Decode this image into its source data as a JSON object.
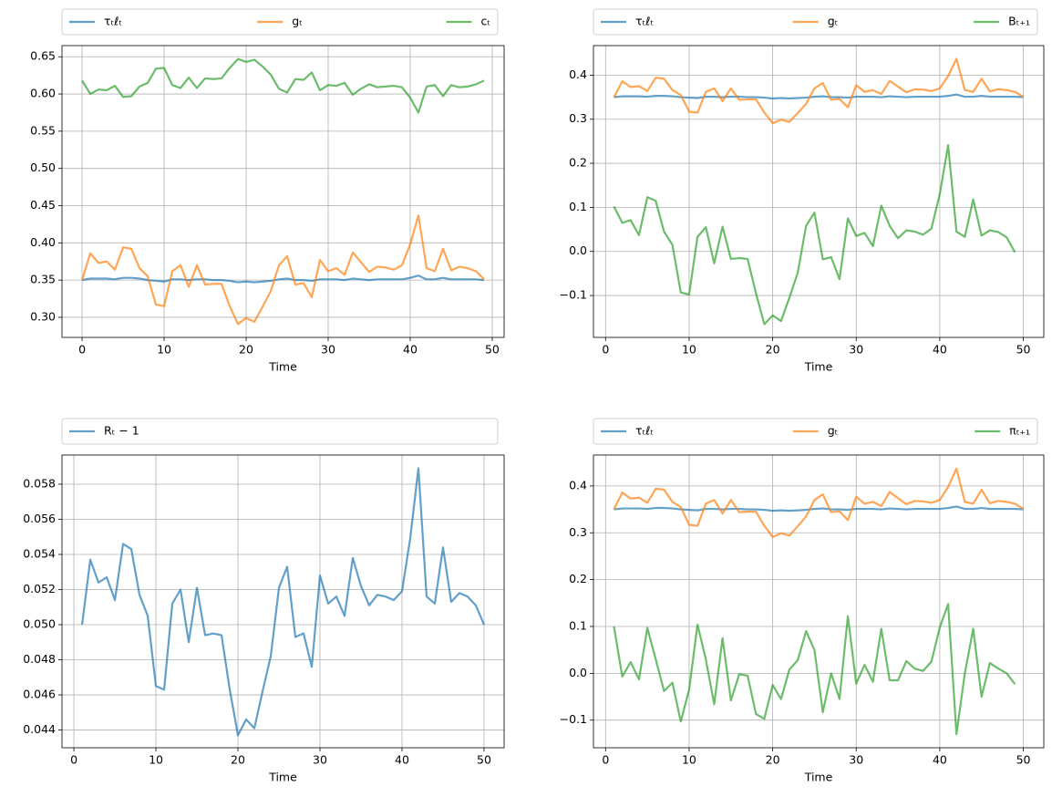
{
  "chart_data": [
    {
      "type": "line",
      "xlabel": "Time",
      "grid": true,
      "legend": "top",
      "x": [
        0,
        1,
        2,
        3,
        4,
        5,
        6,
        7,
        8,
        9,
        10,
        11,
        12,
        13,
        14,
        15,
        16,
        17,
        18,
        19,
        20,
        21,
        22,
        23,
        24,
        25,
        26,
        27,
        28,
        29,
        30,
        31,
        32,
        33,
        34,
        35,
        36,
        37,
        38,
        39,
        40,
        41,
        42,
        43,
        44,
        45,
        46,
        47,
        48,
        49
      ],
      "xlim": [
        -2.45,
        51.45
      ],
      "xticks": [
        0,
        10,
        20,
        30,
        40,
        50
      ],
      "ylim": [
        0.273,
        0.665
      ],
      "yticks": [
        {
          "value": 0.3,
          "label": "0.30"
        },
        0.35,
        {
          "value": 0.4,
          "label": "0.40"
        },
        0.45,
        {
          "value": 0.5,
          "label": "0.50"
        },
        0.55,
        {
          "value": 0.6,
          "label": "0.60"
        },
        0.65
      ],
      "series": [
        {
          "name": "τₜℓₜ",
          "color": "#1f77b4",
          "values": [
            0.35,
            0.352,
            0.352,
            0.352,
            0.351,
            0.353,
            0.353,
            0.352,
            0.35,
            0.349,
            0.348,
            0.351,
            0.351,
            0.35,
            0.351,
            0.351,
            0.35,
            0.35,
            0.349,
            0.347,
            0.348,
            0.347,
            0.348,
            0.349,
            0.351,
            0.352,
            0.35,
            0.35,
            0.349,
            0.351,
            0.351,
            0.351,
            0.35,
            0.352,
            0.351,
            0.35,
            0.351,
            0.351,
            0.351,
            0.351,
            0.353,
            0.356,
            0.351,
            0.351,
            0.353,
            0.351,
            0.351,
            0.351,
            0.351,
            0.35
          ]
        },
        {
          "name": "gₜ",
          "color": "#ff7f0e",
          "values": [
            0.35,
            0.386,
            0.373,
            0.375,
            0.364,
            0.394,
            0.392,
            0.366,
            0.355,
            0.317,
            0.315,
            0.362,
            0.37,
            0.341,
            0.37,
            0.344,
            0.345,
            0.345,
            0.315,
            0.291,
            0.299,
            0.294,
            0.314,
            0.335,
            0.37,
            0.382,
            0.344,
            0.346,
            0.327,
            0.377,
            0.362,
            0.366,
            0.357,
            0.387,
            0.374,
            0.361,
            0.368,
            0.367,
            0.364,
            0.37,
            0.398,
            0.437,
            0.366,
            0.362,
            0.392,
            0.363,
            0.368,
            0.366,
            0.362,
            0.351
          ]
        },
        {
          "name": "cₜ",
          "color": "#2ca02c",
          "values": [
            0.618,
            0.6,
            0.606,
            0.605,
            0.611,
            0.596,
            0.597,
            0.61,
            0.615,
            0.634,
            0.635,
            0.612,
            0.608,
            0.622,
            0.608,
            0.621,
            0.62,
            0.621,
            0.635,
            0.647,
            0.643,
            0.646,
            0.637,
            0.626,
            0.607,
            0.602,
            0.62,
            0.619,
            0.629,
            0.605,
            0.612,
            0.611,
            0.615,
            0.599,
            0.607,
            0.613,
            0.609,
            0.61,
            0.611,
            0.609,
            0.595,
            0.575,
            0.61,
            0.612,
            0.597,
            0.612,
            0.609,
            0.61,
            0.613,
            0.618
          ]
        }
      ]
    },
    {
      "type": "line",
      "xlabel": "Time",
      "grid": true,
      "legend": "top",
      "x": [
        1,
        2,
        3,
        4,
        5,
        6,
        7,
        8,
        9,
        10,
        11,
        12,
        13,
        14,
        15,
        16,
        17,
        18,
        19,
        20,
        21,
        22,
        23,
        24,
        25,
        26,
        27,
        28,
        29,
        30,
        31,
        32,
        33,
        34,
        35,
        36,
        37,
        38,
        39,
        40,
        41,
        42,
        43,
        44,
        45,
        46,
        47,
        48,
        49,
        50
      ],
      "xlim": [
        -1.45,
        52.45
      ],
      "xticks": [
        0,
        10,
        20,
        30,
        40,
        50
      ],
      "ylim": [
        -0.195,
        0.467
      ],
      "yticks": [
        {
          "value": -0.1,
          "label": "−0.1"
        },
        {
          "value": 0,
          "label": "0.0"
        },
        0.1,
        0.2,
        0.3,
        0.4
      ],
      "series": [
        {
          "name": "τₜℓₜ",
          "color": "#1f77b4",
          "values": [
            0.35,
            0.352,
            0.352,
            0.352,
            0.351,
            0.353,
            0.353,
            0.352,
            0.35,
            0.349,
            0.348,
            0.351,
            0.351,
            0.35,
            0.351,
            0.351,
            0.35,
            0.35,
            0.349,
            0.347,
            0.348,
            0.347,
            0.348,
            0.349,
            0.351,
            0.352,
            0.35,
            0.35,
            0.349,
            0.351,
            0.351,
            0.351,
            0.35,
            0.352,
            0.351,
            0.35,
            0.351,
            0.351,
            0.351,
            0.351,
            0.353,
            0.356,
            0.351,
            0.351,
            0.353,
            0.351,
            0.351,
            0.351,
            0.351,
            0.35
          ]
        },
        {
          "name": "gₜ",
          "color": "#ff7f0e",
          "values": [
            0.35,
            0.386,
            0.373,
            0.375,
            0.364,
            0.394,
            0.392,
            0.366,
            0.355,
            0.317,
            0.315,
            0.362,
            0.37,
            0.341,
            0.37,
            0.344,
            0.345,
            0.345,
            0.315,
            0.291,
            0.299,
            0.294,
            0.314,
            0.335,
            0.37,
            0.382,
            0.344,
            0.346,
            0.327,
            0.377,
            0.362,
            0.366,
            0.357,
            0.387,
            0.374,
            0.361,
            0.368,
            0.367,
            0.364,
            0.37,
            0.398,
            0.437,
            0.366,
            0.362,
            0.392,
            0.363,
            0.368,
            0.366,
            0.362,
            0.351
          ]
        },
        {
          "name": "Bₜ₊₁",
          "color": "#2ca02c",
          "values": [
            0.102,
            0.065,
            0.071,
            0.037,
            0.123,
            0.115,
            0.045,
            0.015,
            -0.093,
            -0.098,
            0.033,
            0.055,
            -0.027,
            0.056,
            -0.017,
            -0.015,
            -0.017,
            -0.095,
            -0.165,
            -0.145,
            -0.158,
            -0.105,
            -0.048,
            0.058,
            0.088,
            -0.018,
            -0.013,
            -0.063,
            0.075,
            0.035,
            0.042,
            0.012,
            0.104,
            0.058,
            0.03,
            0.048,
            0.045,
            0.038,
            0.052,
            0.13,
            0.241,
            0.045,
            0.033,
            0.118,
            0.036,
            0.048,
            0.044,
            0.032,
            -0.002,
            null
          ]
        }
      ]
    },
    {
      "type": "line",
      "xlabel": "Time",
      "grid": true,
      "legend": "top",
      "x": [
        1,
        2,
        3,
        4,
        5,
        6,
        7,
        8,
        9,
        10,
        11,
        12,
        13,
        14,
        15,
        16,
        17,
        18,
        19,
        20,
        21,
        22,
        23,
        24,
        25,
        26,
        27,
        28,
        29,
        30,
        31,
        32,
        33,
        34,
        35,
        36,
        37,
        38,
        39,
        40,
        41,
        42,
        43,
        44,
        45,
        46,
        47,
        48,
        49,
        50
      ],
      "xlim": [
        -1.45,
        52.45
      ],
      "xticks": [
        0,
        10,
        20,
        30,
        40,
        50
      ],
      "ylim": [
        0.04299,
        0.05966
      ],
      "yticks": [
        0.044,
        0.046,
        0.048,
        {
          "value": 0.05,
          "label": "0.050"
        },
        0.052,
        0.054,
        0.056,
        0.058
      ],
      "series": [
        {
          "name": "Rₜ − 1",
          "color": "#1f77b4",
          "values": [
            0.05,
            0.0537,
            0.0524,
            0.0527,
            0.0514,
            0.0546,
            0.0543,
            0.0517,
            0.0505,
            0.0465,
            0.0463,
            0.0512,
            0.052,
            0.049,
            0.0521,
            0.0494,
            0.0495,
            0.0494,
            0.0463,
            0.0437,
            0.0446,
            0.0441,
            0.0462,
            0.0482,
            0.0521,
            0.0533,
            0.0493,
            0.0495,
            0.0476,
            0.0528,
            0.0512,
            0.0516,
            0.0505,
            0.0538,
            0.0522,
            0.0511,
            0.0517,
            0.0516,
            0.0514,
            0.0519,
            0.0549,
            0.0589,
            0.0516,
            0.0512,
            0.0544,
            0.0513,
            0.0518,
            0.0516,
            0.0511,
            0.05
          ]
        }
      ]
    },
    {
      "type": "line",
      "xlabel": "Time",
      "grid": true,
      "legend": "top",
      "x": [
        1,
        2,
        3,
        4,
        5,
        6,
        7,
        8,
        9,
        10,
        11,
        12,
        13,
        14,
        15,
        16,
        17,
        18,
        19,
        20,
        21,
        22,
        23,
        24,
        25,
        26,
        27,
        28,
        29,
        30,
        31,
        32,
        33,
        34,
        35,
        36,
        37,
        38,
        39,
        40,
        41,
        42,
        43,
        44,
        45,
        46,
        47,
        48,
        49,
        50
      ],
      "xlim": [
        -1.45,
        52.45
      ],
      "xticks": [
        0,
        10,
        20,
        30,
        40,
        50
      ],
      "ylim": [
        -0.159,
        0.466
      ],
      "yticks": [
        {
          "value": -0.1,
          "label": "−0.1"
        },
        {
          "value": 0,
          "label": "0.0"
        },
        0.1,
        0.2,
        0.3,
        0.4
      ],
      "series": [
        {
          "name": "τₜℓₜ",
          "color": "#1f77b4",
          "values": [
            0.35,
            0.352,
            0.352,
            0.352,
            0.351,
            0.353,
            0.353,
            0.352,
            0.35,
            0.349,
            0.348,
            0.351,
            0.351,
            0.35,
            0.351,
            0.351,
            0.35,
            0.35,
            0.349,
            0.347,
            0.348,
            0.347,
            0.348,
            0.349,
            0.351,
            0.352,
            0.35,
            0.35,
            0.349,
            0.351,
            0.351,
            0.351,
            0.35,
            0.352,
            0.351,
            0.35,
            0.351,
            0.351,
            0.351,
            0.351,
            0.353,
            0.356,
            0.351,
            0.351,
            0.353,
            0.351,
            0.351,
            0.351,
            0.351,
            0.35
          ]
        },
        {
          "name": "gₜ",
          "color": "#ff7f0e",
          "values": [
            0.35,
            0.386,
            0.373,
            0.375,
            0.364,
            0.394,
            0.392,
            0.366,
            0.355,
            0.317,
            0.315,
            0.362,
            0.37,
            0.341,
            0.37,
            0.344,
            0.345,
            0.345,
            0.315,
            0.291,
            0.299,
            0.294,
            0.314,
            0.335,
            0.37,
            0.382,
            0.344,
            0.346,
            0.327,
            0.377,
            0.362,
            0.366,
            0.357,
            0.387,
            0.374,
            0.361,
            0.368,
            0.367,
            0.364,
            0.37,
            0.398,
            0.437,
            0.366,
            0.362,
            0.392,
            0.363,
            0.368,
            0.366,
            0.362,
            0.351
          ]
        },
        {
          "name": "πₜ₊₁",
          "color": "#2ca02c",
          "values": [
            0.1,
            -0.007,
            0.024,
            -0.013,
            0.097,
            0.03,
            -0.038,
            -0.02,
            -0.103,
            -0.035,
            0.104,
            0.03,
            -0.066,
            0.075,
            -0.058,
            -0.002,
            -0.005,
            -0.087,
            -0.097,
            -0.025,
            -0.055,
            0.008,
            0.028,
            0.09,
            0.05,
            -0.083,
            0.0,
            -0.055,
            0.122,
            -0.022,
            0.018,
            -0.018,
            0.095,
            -0.015,
            -0.015,
            0.026,
            0.01,
            0.005,
            0.025,
            0.098,
            0.148,
            -0.13,
            0.0,
            0.095,
            -0.05,
            0.022,
            0.01,
            0.0,
            -0.023,
            null
          ]
        }
      ]
    }
  ]
}
